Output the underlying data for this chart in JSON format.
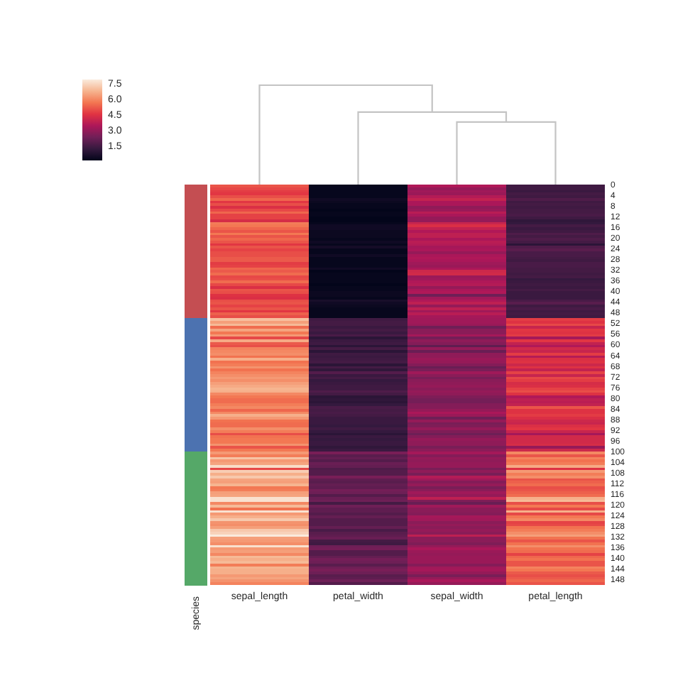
{
  "chart_data": [
    {
      "type": "heatmap",
      "categories": [
        "sepal_length",
        "petal_width",
        "sepal_width",
        "petal_length"
      ],
      "y_categories": [
        "0",
        null,
        null,
        null,
        "4",
        null,
        null,
        null,
        "8",
        null,
        null,
        null,
        "12",
        null,
        null,
        null,
        "16",
        null,
        null,
        null,
        "20",
        null,
        null,
        null,
        "24",
        null,
        null,
        null,
        "28",
        null,
        null,
        null,
        "32",
        null,
        null,
        null,
        "36",
        null,
        null,
        null,
        "40",
        null,
        null,
        null,
        "44",
        null,
        null,
        null,
        "48",
        null,
        null,
        null,
        "52",
        null,
        null,
        null,
        "56",
        null,
        null,
        null,
        "60",
        null,
        null,
        null,
        "64",
        null,
        null,
        null,
        "68",
        null,
        null,
        null,
        "72",
        null,
        null,
        null,
        "76",
        null,
        null,
        null,
        "80",
        null,
        null,
        null,
        "84",
        null,
        null,
        null,
        "88",
        null,
        null,
        null,
        "92",
        null,
        null,
        null,
        "96",
        null,
        null,
        null,
        "100",
        null,
        null,
        null,
        "104",
        null,
        null,
        null,
        "108",
        null,
        null,
        null,
        "112",
        null,
        null,
        null,
        "116",
        null,
        null,
        null,
        "120",
        null,
        null,
        null,
        "124",
        null,
        null,
        null,
        "128",
        null,
        null,
        null,
        "132",
        null,
        null,
        null,
        "136",
        null,
        null,
        null,
        "140",
        null,
        null,
        null,
        "144",
        null,
        null,
        null,
        "148",
        null
      ],
      "cells": [
        [
          5.1,
          0.2,
          3.5,
          1.4
        ],
        [
          4.9,
          0.2,
          3.0,
          1.4
        ],
        [
          4.7,
          0.2,
          3.2,
          1.3
        ],
        [
          4.6,
          0.2,
          3.1,
          1.5
        ],
        [
          5.0,
          0.2,
          3.6,
          1.4
        ],
        [
          5.4,
          0.4,
          3.9,
          1.7
        ],
        [
          4.6,
          0.3,
          3.4,
          1.4
        ],
        [
          5.0,
          0.2,
          3.4,
          1.5
        ],
        [
          4.4,
          0.2,
          2.9,
          1.4
        ],
        [
          4.9,
          0.1,
          3.1,
          1.5
        ],
        [
          5.4,
          0.2,
          3.7,
          1.5
        ],
        [
          4.8,
          0.2,
          3.4,
          1.6
        ],
        [
          4.8,
          0.1,
          3.0,
          1.4
        ],
        [
          4.3,
          0.1,
          3.0,
          1.1
        ],
        [
          5.8,
          0.2,
          4.0,
          1.2
        ],
        [
          5.7,
          0.4,
          4.4,
          1.5
        ],
        [
          5.4,
          0.4,
          3.9,
          1.3
        ],
        [
          5.1,
          0.3,
          3.5,
          1.4
        ],
        [
          5.7,
          0.3,
          3.8,
          1.7
        ],
        [
          5.1,
          0.3,
          3.8,
          1.5
        ],
        [
          5.4,
          0.2,
          3.4,
          1.7
        ],
        [
          5.1,
          0.4,
          3.7,
          1.5
        ],
        [
          4.6,
          0.2,
          3.6,
          1.0
        ],
        [
          5.1,
          0.5,
          3.3,
          1.7
        ],
        [
          4.8,
          0.2,
          3.4,
          1.9
        ],
        [
          5.0,
          0.2,
          3.0,
          1.6
        ],
        [
          5.0,
          0.4,
          3.4,
          1.6
        ],
        [
          5.2,
          0.2,
          3.5,
          1.5
        ],
        [
          5.2,
          0.2,
          3.4,
          1.4
        ],
        [
          4.7,
          0.2,
          3.2,
          1.6
        ],
        [
          4.8,
          0.2,
          3.1,
          1.6
        ],
        [
          5.4,
          0.4,
          3.4,
          1.5
        ],
        [
          5.2,
          0.1,
          4.1,
          1.5
        ],
        [
          5.5,
          0.2,
          4.2,
          1.4
        ],
        [
          4.9,
          0.2,
          3.1,
          1.5
        ],
        [
          5.0,
          0.2,
          3.2,
          1.2
        ],
        [
          5.5,
          0.2,
          3.5,
          1.3
        ],
        [
          4.9,
          0.1,
          3.6,
          1.4
        ],
        [
          4.4,
          0.2,
          3.0,
          1.3
        ],
        [
          5.1,
          0.2,
          3.4,
          1.5
        ],
        [
          5.0,
          0.3,
          3.5,
          1.3
        ],
        [
          4.5,
          0.3,
          2.3,
          1.3
        ],
        [
          4.4,
          0.2,
          3.2,
          1.3
        ],
        [
          5.0,
          0.6,
          3.5,
          1.6
        ],
        [
          5.1,
          0.4,
          3.8,
          1.9
        ],
        [
          4.8,
          0.3,
          3.0,
          1.4
        ],
        [
          5.1,
          0.2,
          3.8,
          1.6
        ],
        [
          4.6,
          0.2,
          3.2,
          1.4
        ],
        [
          5.3,
          0.2,
          3.7,
          1.5
        ],
        [
          5.0,
          0.2,
          3.3,
          1.4
        ],
        [
          7.0,
          1.4,
          3.2,
          4.7
        ],
        [
          6.4,
          1.5,
          3.2,
          4.5
        ],
        [
          6.9,
          1.5,
          3.1,
          4.9
        ],
        [
          5.5,
          1.3,
          2.3,
          4.0
        ],
        [
          6.5,
          1.5,
          2.8,
          4.6
        ],
        [
          5.7,
          1.3,
          2.8,
          4.5
        ],
        [
          6.3,
          1.6,
          3.3,
          4.7
        ],
        [
          4.9,
          1.0,
          2.4,
          3.3
        ],
        [
          6.6,
          1.3,
          2.9,
          4.6
        ],
        [
          5.2,
          1.4,
          2.7,
          3.9
        ],
        [
          5.0,
          1.0,
          2.0,
          3.5
        ],
        [
          5.9,
          1.5,
          3.0,
          4.2
        ],
        [
          6.0,
          1.0,
          2.2,
          4.0
        ],
        [
          6.1,
          1.4,
          2.9,
          4.7
        ],
        [
          5.6,
          1.3,
          2.9,
          3.6
        ],
        [
          6.7,
          1.4,
          3.1,
          4.4
        ],
        [
          5.6,
          1.5,
          3.0,
          4.5
        ],
        [
          5.8,
          1.0,
          2.7,
          4.1
        ],
        [
          6.2,
          1.5,
          2.2,
          4.5
        ],
        [
          5.6,
          1.1,
          2.5,
          3.9
        ],
        [
          5.9,
          1.8,
          3.2,
          4.8
        ],
        [
          6.1,
          1.3,
          2.8,
          4.0
        ],
        [
          6.3,
          1.5,
          2.5,
          4.9
        ],
        [
          6.1,
          1.2,
          2.8,
          4.7
        ],
        [
          6.4,
          1.3,
          2.9,
          4.3
        ],
        [
          6.6,
          1.4,
          3.0,
          4.4
        ],
        [
          6.8,
          1.4,
          2.8,
          4.8
        ],
        [
          6.7,
          1.7,
          3.0,
          5.0
        ],
        [
          6.0,
          1.5,
          2.9,
          4.5
        ],
        [
          5.7,
          1.0,
          2.6,
          3.5
        ],
        [
          5.5,
          1.1,
          2.4,
          3.8
        ],
        [
          5.5,
          1.0,
          2.4,
          3.7
        ],
        [
          5.8,
          1.2,
          2.7,
          3.9
        ],
        [
          6.0,
          1.6,
          2.7,
          5.1
        ],
        [
          5.4,
          1.5,
          3.0,
          4.5
        ],
        [
          6.0,
          1.6,
          3.4,
          4.5
        ],
        [
          6.7,
          1.5,
          3.1,
          4.7
        ],
        [
          6.3,
          1.3,
          2.3,
          4.4
        ],
        [
          5.6,
          1.3,
          3.0,
          4.1
        ],
        [
          5.5,
          1.3,
          2.5,
          4.0
        ],
        [
          5.5,
          1.2,
          2.6,
          4.4
        ],
        [
          6.1,
          1.4,
          3.0,
          4.6
        ],
        [
          5.8,
          1.2,
          2.6,
          4.0
        ],
        [
          5.0,
          1.0,
          2.3,
          3.3
        ],
        [
          5.6,
          1.3,
          2.7,
          4.2
        ],
        [
          5.7,
          1.2,
          3.0,
          4.2
        ],
        [
          5.7,
          1.3,
          2.9,
          4.2
        ],
        [
          6.2,
          1.3,
          2.9,
          4.3
        ],
        [
          5.1,
          1.1,
          2.5,
          3.0
        ],
        [
          5.7,
          1.3,
          2.8,
          4.1
        ],
        [
          6.3,
          2.5,
          3.3,
          6.0
        ],
        [
          5.8,
          1.9,
          2.7,
          5.1
        ],
        [
          7.1,
          2.1,
          3.0,
          5.9
        ],
        [
          6.3,
          1.8,
          2.9,
          5.6
        ],
        [
          6.5,
          2.2,
          3.0,
          5.8
        ],
        [
          7.6,
          2.1,
          3.0,
          6.6
        ],
        [
          4.9,
          1.7,
          2.5,
          4.5
        ],
        [
          7.3,
          1.8,
          2.9,
          6.3
        ],
        [
          6.7,
          1.8,
          2.5,
          5.8
        ],
        [
          7.2,
          2.5,
          3.6,
          6.1
        ],
        [
          6.5,
          2.0,
          3.2,
          5.1
        ],
        [
          6.4,
          1.9,
          2.7,
          5.3
        ],
        [
          6.8,
          2.1,
          3.0,
          5.5
        ],
        [
          5.7,
          2.0,
          2.5,
          5.0
        ],
        [
          5.8,
          2.4,
          2.8,
          5.1
        ],
        [
          6.4,
          2.3,
          3.2,
          5.3
        ],
        [
          6.5,
          1.8,
          3.0,
          5.5
        ],
        [
          7.7,
          2.2,
          3.8,
          6.7
        ],
        [
          7.7,
          2.3,
          2.6,
          6.9
        ],
        [
          6.0,
          1.5,
          2.2,
          5.0
        ],
        [
          6.9,
          2.3,
          3.2,
          5.7
        ],
        [
          5.6,
          2.0,
          2.8,
          4.9
        ],
        [
          7.7,
          2.0,
          2.8,
          6.7
        ],
        [
          6.3,
          1.8,
          2.7,
          4.9
        ],
        [
          6.7,
          2.1,
          3.3,
          5.7
        ],
        [
          7.2,
          1.8,
          3.2,
          6.0
        ],
        [
          6.2,
          1.8,
          2.8,
          4.8
        ],
        [
          6.1,
          1.8,
          3.0,
          4.9
        ],
        [
          6.4,
          2.1,
          2.8,
          5.6
        ],
        [
          7.2,
          1.6,
          3.0,
          5.8
        ],
        [
          7.4,
          1.9,
          2.8,
          6.1
        ],
        [
          7.9,
          2.0,
          3.8,
          6.4
        ],
        [
          6.4,
          2.2,
          2.8,
          5.6
        ],
        [
          6.3,
          1.5,
          2.8,
          5.1
        ],
        [
          6.1,
          1.4,
          2.6,
          5.6
        ],
        [
          7.7,
          2.3,
          3.0,
          6.1
        ],
        [
          6.3,
          2.4,
          3.4,
          5.6
        ],
        [
          6.4,
          1.8,
          3.1,
          5.5
        ],
        [
          6.0,
          1.8,
          3.0,
          4.8
        ],
        [
          6.9,
          2.1,
          3.1,
          5.4
        ],
        [
          6.7,
          2.4,
          3.1,
          5.6
        ],
        [
          6.9,
          2.3,
          3.1,
          5.1
        ],
        [
          5.8,
          1.9,
          2.7,
          5.1
        ],
        [
          6.8,
          2.3,
          3.2,
          5.9
        ],
        [
          6.7,
          2.5,
          3.3,
          5.7
        ],
        [
          6.7,
          2.3,
          3.0,
          5.2
        ],
        [
          6.3,
          1.9,
          2.5,
          5.0
        ],
        [
          6.5,
          2.0,
          3.0,
          5.2
        ],
        [
          6.2,
          2.3,
          3.4,
          5.4
        ],
        [
          5.9,
          1.8,
          3.0,
          5.1
        ]
      ],
      "clim": [
        0.1,
        7.9
      ],
      "cticks": [
        1.5,
        {
          "value": 3,
          "label": "3.0"
        },
        4.5,
        {
          "value": 6,
          "label": "6.0"
        },
        7.5
      ]
    },
    {
      "type": "other",
      "categories": [
        "species"
      ],
      "colors": [
        "#c44e52",
        "#c44e52",
        "#c44e52",
        "#c44e52",
        "#c44e52",
        "#c44e52",
        "#c44e52",
        "#c44e52",
        "#c44e52",
        "#c44e52",
        "#c44e52",
        "#c44e52",
        "#c44e52",
        "#c44e52",
        "#c44e52",
        "#c44e52",
        "#c44e52",
        "#c44e52",
        "#c44e52",
        "#c44e52",
        "#c44e52",
        "#c44e52",
        "#c44e52",
        "#c44e52",
        "#c44e52",
        "#c44e52",
        "#c44e52",
        "#c44e52",
        "#c44e52",
        "#c44e52",
        "#c44e52",
        "#c44e52",
        "#c44e52",
        "#c44e52",
        "#c44e52",
        "#c44e52",
        "#c44e52",
        "#c44e52",
        "#c44e52",
        "#c44e52",
        "#c44e52",
        "#c44e52",
        "#c44e52",
        "#c44e52",
        "#c44e52",
        "#c44e52",
        "#c44e52",
        "#c44e52",
        "#c44e52",
        "#c44e52",
        "#4c72b0",
        "#4c72b0",
        "#4c72b0",
        "#4c72b0",
        "#4c72b0",
        "#4c72b0",
        "#4c72b0",
        "#4c72b0",
        "#4c72b0",
        "#4c72b0",
        "#4c72b0",
        "#4c72b0",
        "#4c72b0",
        "#4c72b0",
        "#4c72b0",
        "#4c72b0",
        "#4c72b0",
        "#4c72b0",
        "#4c72b0",
        "#4c72b0",
        "#4c72b0",
        "#4c72b0",
        "#4c72b0",
        "#4c72b0",
        "#4c72b0",
        "#4c72b0",
        "#4c72b0",
        "#4c72b0",
        "#4c72b0",
        "#4c72b0",
        "#4c72b0",
        "#4c72b0",
        "#4c72b0",
        "#4c72b0",
        "#4c72b0",
        "#4c72b0",
        "#4c72b0",
        "#4c72b0",
        "#4c72b0",
        "#4c72b0",
        "#4c72b0",
        "#4c72b0",
        "#4c72b0",
        "#4c72b0",
        "#4c72b0",
        "#4c72b0",
        "#4c72b0",
        "#4c72b0",
        "#4c72b0",
        "#4c72b0",
        "#55a868",
        "#55a868",
        "#55a868",
        "#55a868",
        "#55a868",
        "#55a868",
        "#55a868",
        "#55a868",
        "#55a868",
        "#55a868",
        "#55a868",
        "#55a868",
        "#55a868",
        "#55a868",
        "#55a868",
        "#55a868",
        "#55a868",
        "#55a868",
        "#55a868",
        "#55a868",
        "#55a868",
        "#55a868",
        "#55a868",
        "#55a868",
        "#55a868",
        "#55a868",
        "#55a868",
        "#55a868",
        "#55a868",
        "#55a868",
        "#55a868",
        "#55a868",
        "#55a868",
        "#55a868",
        "#55a868",
        "#55a868",
        "#55a868",
        "#55a868",
        "#55a868",
        "#55a868",
        "#55a868",
        "#55a868",
        "#55a868",
        "#55a868",
        "#55a868",
        "#55a868",
        "#55a868",
        "#55a868",
        "#55a868",
        "#55a868"
      ]
    }
  ]
}
